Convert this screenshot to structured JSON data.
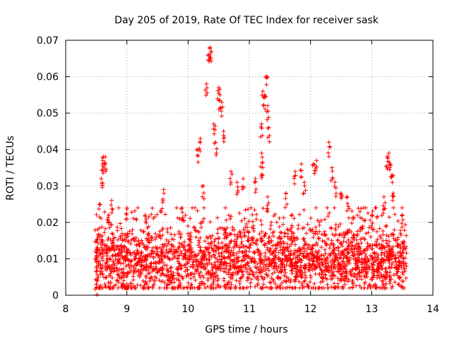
{
  "chart_data": {
    "type": "scatter",
    "title": "Day 205 of 2019, Rate Of TEC Index for receiver sask",
    "xlabel": "GPS time / hours",
    "ylabel": "ROTI / TECUs",
    "xlim": [
      8,
      14
    ],
    "ylim": [
      0,
      0.07
    ],
    "xticks": [
      8,
      9,
      10,
      11,
      12,
      13,
      14
    ],
    "xtick_labels": [
      "8",
      "9",
      "10",
      "11",
      "12",
      "13",
      "14"
    ],
    "yticks": [
      0,
      0.01,
      0.02,
      0.03,
      0.04,
      0.05,
      0.06,
      0.07
    ],
    "ytick_labels": [
      "0",
      "0.01",
      "0.02",
      "0.03",
      "0.04",
      "0.05",
      "0.06",
      "0.07"
    ],
    "grid": true,
    "marker": "plus",
    "color": "#ff0000",
    "series": [
      {
        "name": "ROTI",
        "x_range": [
          8.48,
          13.57
        ],
        "typical_y_range": [
          0.003,
          0.022
        ],
        "points": [
          [
            8.5,
            0.003
          ],
          [
            8.52,
            0.018
          ],
          [
            8.55,
            0.025
          ],
          [
            8.58,
            0.032
          ],
          [
            8.6,
            0.036
          ],
          [
            8.62,
            0.038
          ],
          [
            8.65,
            0.038
          ],
          [
            8.7,
            0.022
          ],
          [
            8.75,
            0.026
          ],
          [
            9.0,
            0.024
          ],
          [
            9.3,
            0.022
          ],
          [
            9.6,
            0.029
          ],
          [
            9.9,
            0.024
          ],
          [
            10.15,
            0.04
          ],
          [
            10.2,
            0.043
          ],
          [
            10.25,
            0.03
          ],
          [
            10.3,
            0.058
          ],
          [
            10.33,
            0.066
          ],
          [
            10.36,
            0.068
          ],
          [
            10.38,
            0.067
          ],
          [
            10.42,
            0.047
          ],
          [
            10.45,
            0.042
          ],
          [
            10.5,
            0.057
          ],
          [
            10.52,
            0.055
          ],
          [
            10.55,
            0.053
          ],
          [
            10.58,
            0.045
          ],
          [
            10.7,
            0.034
          ],
          [
            10.8,
            0.031
          ],
          [
            10.9,
            0.032
          ],
          [
            11.2,
            0.047
          ],
          [
            11.22,
            0.056
          ],
          [
            11.25,
            0.055
          ],
          [
            11.28,
            0.06
          ],
          [
            11.3,
            0.052
          ],
          [
            11.32,
            0.046
          ],
          [
            11.2,
            0.039
          ],
          [
            11.22,
            0.035
          ],
          [
            11.1,
            0.032
          ],
          [
            11.3,
            0.027
          ],
          [
            11.6,
            0.028
          ],
          [
            11.75,
            0.034
          ],
          [
            11.85,
            0.036
          ],
          [
            11.9,
            0.031
          ],
          [
            12.05,
            0.036
          ],
          [
            12.1,
            0.037
          ],
          [
            12.3,
            0.042
          ],
          [
            12.35,
            0.035
          ],
          [
            12.4,
            0.031
          ],
          [
            12.5,
            0.028
          ],
          [
            12.6,
            0.027
          ],
          [
            13.0,
            0.022
          ],
          [
            13.2,
            0.027
          ],
          [
            13.25,
            0.038
          ],
          [
            13.28,
            0.039
          ],
          [
            13.3,
            0.036
          ],
          [
            13.33,
            0.033
          ],
          [
            13.35,
            0.028
          ],
          [
            13.5,
            0.022
          ]
        ]
      }
    ]
  }
}
